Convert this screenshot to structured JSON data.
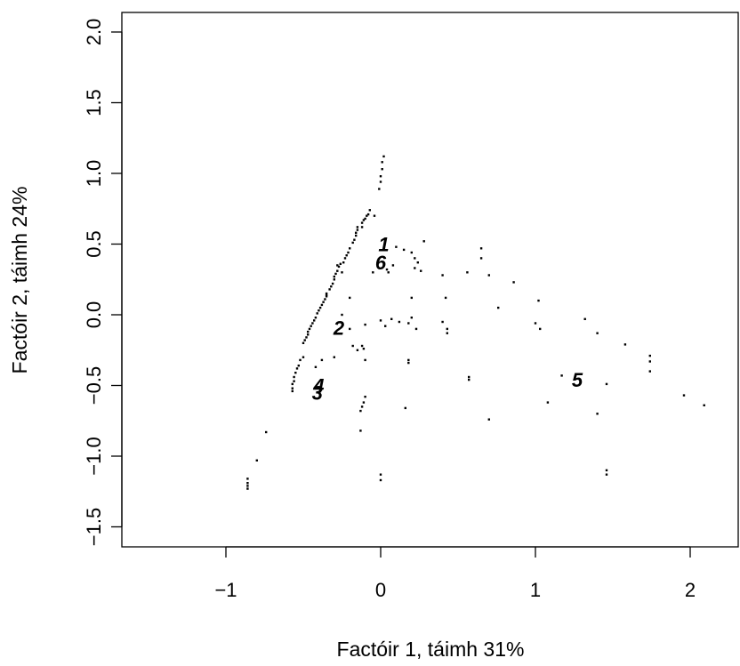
{
  "chart_data": {
    "type": "scatter",
    "title": "",
    "xlabel": "Factóir 1, táimh 31%",
    "ylabel": "Factóir 2, táimh 24%",
    "xlim": [
      -1.6,
      2.3
    ],
    "ylim": [
      -1.65,
      2.1
    ],
    "x_ticks": [
      -1,
      0,
      1,
      2
    ],
    "x_tick_labels": [
      "−1",
      "0",
      "1",
      "2"
    ],
    "y_ticks": [
      -1.5,
      -1.0,
      -0.5,
      0.0,
      0.5,
      1.0,
      1.5,
      2.0
    ],
    "y_tick_labels": [
      "−1.5",
      "−1.0",
      "−0.5",
      "0.0",
      "0.5",
      "1.0",
      "1.5",
      "2.0"
    ],
    "grid": false,
    "marker": "small-square",
    "point_color": "#000000",
    "points": [
      [
        0.02,
        1.12
      ],
      [
        0.01,
        1.08
      ],
      [
        0.01,
        1.03
      ],
      [
        0.0,
        0.98
      ],
      [
        0.0,
        0.94
      ],
      [
        -0.01,
        0.89
      ],
      [
        -0.07,
        0.74
      ],
      [
        -0.08,
        0.71
      ],
      [
        -0.09,
        0.7
      ],
      [
        -0.1,
        0.68
      ],
      [
        -0.11,
        0.67
      ],
      [
        -0.12,
        0.65
      ],
      [
        -0.15,
        0.62
      ],
      [
        -0.15,
        0.6
      ],
      [
        -0.16,
        0.58
      ],
      [
        -0.16,
        0.56
      ],
      [
        -0.17,
        0.53
      ],
      [
        -0.18,
        0.51
      ],
      [
        -0.2,
        0.47
      ],
      [
        -0.21,
        0.44
      ],
      [
        -0.22,
        0.42
      ],
      [
        -0.23,
        0.4
      ],
      [
        -0.24,
        0.37
      ],
      [
        -0.26,
        0.36
      ],
      [
        -0.27,
        0.34
      ],
      [
        -0.28,
        0.31
      ],
      [
        -0.29,
        0.29
      ],
      [
        -0.3,
        0.27
      ],
      [
        -0.3,
        0.25
      ],
      [
        -0.31,
        0.22
      ],
      [
        -0.32,
        0.2
      ],
      [
        -0.33,
        0.18
      ],
      [
        -0.35,
        0.15
      ],
      [
        -0.35,
        0.13
      ],
      [
        -0.36,
        0.11
      ],
      [
        -0.37,
        0.09
      ],
      [
        -0.38,
        0.07
      ],
      [
        -0.39,
        0.05
      ],
      [
        -0.4,
        0.03
      ],
      [
        -0.41,
        0.01
      ],
      [
        -0.42,
        -0.02
      ],
      [
        -0.43,
        -0.04
      ],
      [
        -0.44,
        -0.06
      ],
      [
        -0.45,
        -0.08
      ],
      [
        -0.46,
        -0.1
      ],
      [
        -0.47,
        -0.12
      ],
      [
        -0.47,
        -0.14
      ],
      [
        -0.48,
        -0.16
      ],
      [
        -0.49,
        -0.18
      ],
      [
        -0.5,
        -0.2
      ],
      [
        -0.5,
        -0.3
      ],
      [
        -0.52,
        -0.32
      ],
      [
        -0.53,
        -0.36
      ],
      [
        -0.54,
        -0.38
      ],
      [
        -0.55,
        -0.41
      ],
      [
        -0.56,
        -0.44
      ],
      [
        -0.56,
        -0.47
      ],
      [
        -0.57,
        -0.49
      ],
      [
        -0.57,
        -0.52
      ],
      [
        -0.57,
        -0.54
      ],
      [
        -0.74,
        -0.83
      ],
      [
        -0.8,
        -1.03
      ],
      [
        -0.86,
        -1.16
      ],
      [
        -0.86,
        -1.19
      ],
      [
        -0.86,
        -1.21
      ],
      [
        -0.86,
        -1.23
      ],
      [
        -0.28,
        0.35
      ],
      [
        -0.35,
        0.14
      ],
      [
        -0.2,
        0.12
      ],
      [
        -0.25,
        0.3
      ],
      [
        -0.12,
        0.62
      ],
      [
        -0.04,
        0.7
      ],
      [
        -0.25,
        0.0
      ],
      [
        -0.2,
        -0.1
      ],
      [
        -0.15,
        -0.25
      ],
      [
        -0.18,
        -0.22
      ],
      [
        -0.11,
        -0.24
      ],
      [
        -0.12,
        -0.22
      ],
      [
        -0.1,
        -0.07
      ],
      [
        -0.1,
        -0.32
      ],
      [
        -0.3,
        -0.3
      ],
      [
        -0.38,
        -0.32
      ],
      [
        -0.42,
        -0.37
      ],
      [
        -0.1,
        -0.58
      ],
      [
        -0.11,
        -0.62
      ],
      [
        -0.12,
        -0.65
      ],
      [
        -0.13,
        -0.68
      ],
      [
        -0.13,
        -0.82
      ],
      [
        -0.05,
        0.3
      ],
      [
        0.02,
        0.35
      ],
      [
        0.04,
        0.32
      ],
      [
        0.05,
        0.3
      ],
      [
        0.08,
        0.35
      ],
      [
        0.1,
        0.48
      ],
      [
        0.15,
        0.46
      ],
      [
        0.2,
        0.44
      ],
      [
        0.22,
        0.4
      ],
      [
        0.24,
        0.37
      ],
      [
        0.22,
        0.33
      ],
      [
        0.26,
        0.31
      ],
      [
        0.28,
        0.52
      ],
      [
        0.0,
        -0.04
      ],
      [
        0.03,
        -0.08
      ],
      [
        0.07,
        -0.03
      ],
      [
        0.12,
        -0.05
      ],
      [
        0.18,
        -0.06
      ],
      [
        0.2,
        -0.02
      ],
      [
        0.2,
        0.12
      ],
      [
        0.23,
        -0.1
      ],
      [
        0.18,
        -0.32
      ],
      [
        0.18,
        -0.34
      ],
      [
        0.16,
        -0.66
      ],
      [
        0.0,
        -1.13
      ],
      [
        0.0,
        -1.17
      ],
      [
        0.4,
        0.28
      ],
      [
        0.42,
        0.12
      ],
      [
        0.4,
        -0.05
      ],
      [
        0.43,
        -0.1
      ],
      [
        0.43,
        -0.13
      ],
      [
        0.57,
        -0.46
      ],
      [
        0.57,
        -0.44
      ],
      [
        0.56,
        0.3
      ],
      [
        0.65,
        0.47
      ],
      [
        0.65,
        0.4
      ],
      [
        0.7,
        0.28
      ],
      [
        0.76,
        0.05
      ],
      [
        0.7,
        -0.74
      ],
      [
        0.86,
        0.23
      ],
      [
        1.02,
        0.1
      ],
      [
        1.0,
        -0.06
      ],
      [
        1.03,
        -0.1
      ],
      [
        1.08,
        -0.62
      ],
      [
        1.17,
        -0.43
      ],
      [
        1.32,
        -0.03
      ],
      [
        1.4,
        -0.13
      ],
      [
        1.4,
        -0.7
      ],
      [
        1.46,
        -0.49
      ],
      [
        1.46,
        -1.1
      ],
      [
        1.46,
        -1.13
      ],
      [
        1.58,
        -0.21
      ],
      [
        1.74,
        -0.29
      ],
      [
        1.74,
        -0.33
      ],
      [
        1.74,
        -0.4
      ],
      [
        1.96,
        -0.57
      ],
      [
        2.09,
        -0.64
      ]
    ],
    "cluster_labels": [
      {
        "text": "1",
        "x": 0.02,
        "y": 0.5
      },
      {
        "text": "6",
        "x": 0.0,
        "y": 0.37
      },
      {
        "text": "2",
        "x": -0.27,
        "y": -0.09
      },
      {
        "text": "4",
        "x": -0.4,
        "y": -0.5
      },
      {
        "text": "3",
        "x": -0.41,
        "y": -0.55
      },
      {
        "text": "5",
        "x": 1.27,
        "y": -0.46
      }
    ]
  }
}
